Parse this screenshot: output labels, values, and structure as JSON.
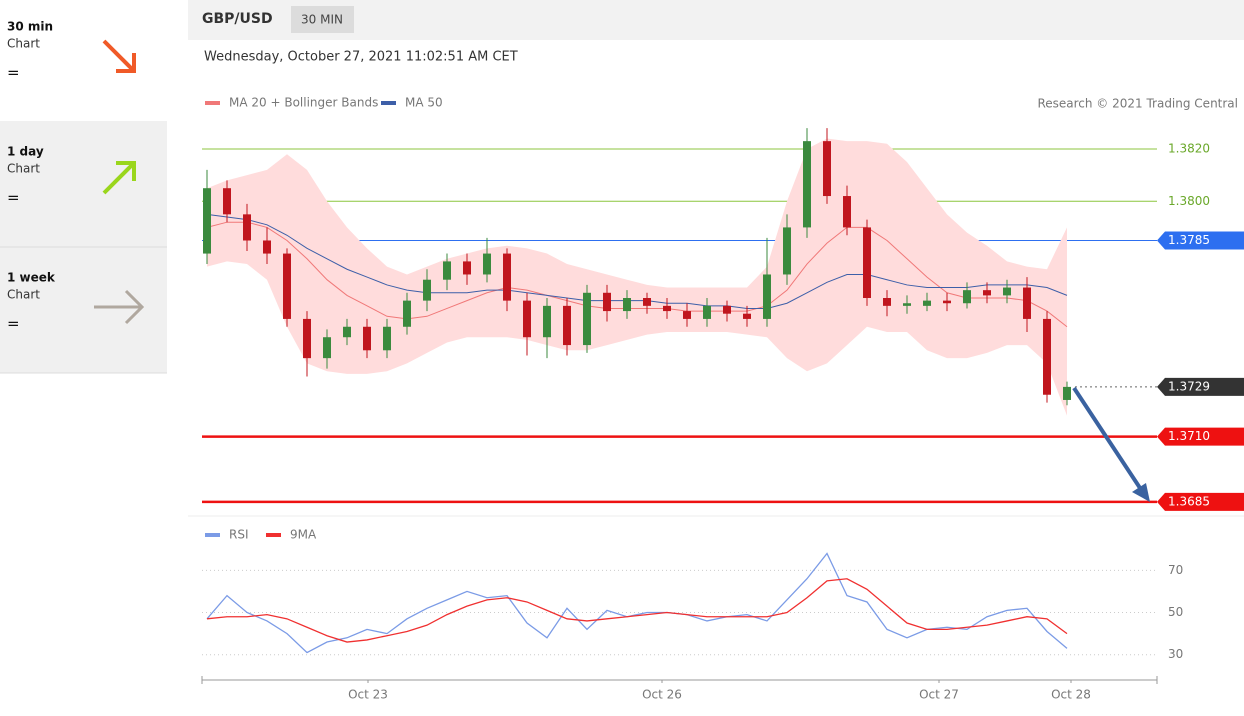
{
  "sidebar": [
    {
      "period": "30 min",
      "label": "Chart",
      "status": "="
    },
    {
      "period": "1 day",
      "label": "Chart",
      "status": "="
    },
    {
      "period": "1 week",
      "label": "Chart",
      "status": "="
    }
  ],
  "header": {
    "symbol": "GBP/USD",
    "interval": "30 MIN",
    "timestamp": "Wednesday, October 27, 2021 11:02:51 AM CET",
    "credit": "Research © 2021 Trading Central"
  },
  "chart_data": [
    {
      "type": "candlestick",
      "up_color": "#3b8a3e",
      "down_color": "#c0161e",
      "open": [
        1.378,
        1.3805,
        1.3795,
        1.3785,
        1.378,
        1.3755,
        1.374,
        1.3748,
        1.3752,
        1.3743,
        1.3752,
        1.3762,
        1.377,
        1.3777,
        1.3772,
        1.378,
        1.3762,
        1.3748,
        1.376,
        1.3745,
        1.3765,
        1.3758,
        1.3763,
        1.376,
        1.3758,
        1.3755,
        1.376,
        1.3757,
        1.3755,
        1.3772,
        1.379,
        1.3823,
        1.3802,
        1.379,
        1.3763,
        1.376,
        1.376,
        1.3762,
        1.3761,
        1.3766,
        1.3764,
        1.3767,
        1.3755,
        1.3724
      ],
      "high": [
        1.3812,
        1.3808,
        1.3799,
        1.379,
        1.3782,
        1.3758,
        1.3751,
        1.3755,
        1.3755,
        1.3755,
        1.3765,
        1.3774,
        1.378,
        1.378,
        1.3786,
        1.3782,
        1.3765,
        1.3763,
        1.3763,
        1.3768,
        1.3768,
        1.3766,
        1.3765,
        1.3763,
        1.3761,
        1.3763,
        1.3762,
        1.376,
        1.3786,
        1.3795,
        1.3828,
        1.3828,
        1.3806,
        1.3793,
        1.3766,
        1.3764,
        1.3765,
        1.3765,
        1.3769,
        1.3769,
        1.377,
        1.3771,
        1.3758,
        1.3731
      ],
      "low": [
        1.3776,
        1.3792,
        1.3781,
        1.3776,
        1.3752,
        1.3733,
        1.3736,
        1.3745,
        1.374,
        1.374,
        1.3749,
        1.3758,
        1.3766,
        1.3768,
        1.3769,
        1.3758,
        1.3741,
        1.374,
        1.3741,
        1.3742,
        1.3754,
        1.3755,
        1.3757,
        1.3755,
        1.3752,
        1.3752,
        1.3754,
        1.3752,
        1.3752,
        1.3768,
        1.3786,
        1.3799,
        1.3787,
        1.376,
        1.3756,
        1.3757,
        1.3758,
        1.3758,
        1.3759,
        1.3761,
        1.3761,
        1.375,
        1.3723,
        1.3722
      ],
      "close": [
        1.3805,
        1.3795,
        1.3785,
        1.378,
        1.3755,
        1.374,
        1.3748,
        1.3752,
        1.3743,
        1.3752,
        1.3762,
        1.377,
        1.3777,
        1.3772,
        1.378,
        1.3762,
        1.3748,
        1.376,
        1.3745,
        1.3765,
        1.3758,
        1.3763,
        1.376,
        1.3758,
        1.3755,
        1.376,
        1.3757,
        1.3755,
        1.3772,
        1.379,
        1.3823,
        1.3802,
        1.379,
        1.3763,
        1.376,
        1.3761,
        1.3762,
        1.3761,
        1.3766,
        1.3764,
        1.3767,
        1.3755,
        1.3726,
        1.3729
      ],
      "overlays": [
        {
          "name": "MA 20 + Bollinger Bands",
          "color": "#f07878",
          "band_color": "#ffdcdc",
          "values": [
            1.379,
            1.3792,
            1.3792,
            1.379,
            1.3785,
            1.3778,
            1.377,
            1.3764,
            1.376,
            1.3756,
            1.3755,
            1.3756,
            1.3759,
            1.3762,
            1.3765,
            1.3767,
            1.3766,
            1.3764,
            1.3762,
            1.376,
            1.3759,
            1.3759,
            1.3759,
            1.3759,
            1.3758,
            1.3758,
            1.3758,
            1.3758,
            1.376,
            1.3766,
            1.3776,
            1.3784,
            1.379,
            1.379,
            1.3785,
            1.3778,
            1.3771,
            1.3765,
            1.3763,
            1.3763,
            1.3763,
            1.3762,
            1.3758,
            1.3752
          ],
          "upper": [
            1.3805,
            1.3808,
            1.381,
            1.3812,
            1.3818,
            1.3812,
            1.38,
            1.379,
            1.3782,
            1.3775,
            1.3772,
            1.3775,
            1.3778,
            1.378,
            1.3782,
            1.3783,
            1.3782,
            1.378,
            1.3776,
            1.3774,
            1.3772,
            1.377,
            1.3768,
            1.3767,
            1.3767,
            1.3767,
            1.3767,
            1.3767,
            1.3775,
            1.38,
            1.382,
            1.3824,
            1.3823,
            1.3823,
            1.3822,
            1.3815,
            1.3805,
            1.3795,
            1.3788,
            1.3783,
            1.3777,
            1.3775,
            1.3774,
            1.379
          ],
          "lower": [
            1.3775,
            1.3777,
            1.3776,
            1.377,
            1.3752,
            1.3738,
            1.3735,
            1.3734,
            1.3734,
            1.3735,
            1.3738,
            1.3742,
            1.3746,
            1.3748,
            1.3748,
            1.3748,
            1.3747,
            1.3745,
            1.3743,
            1.3743,
            1.3745,
            1.3747,
            1.3749,
            1.375,
            1.375,
            1.375,
            1.375,
            1.3749,
            1.3748,
            1.374,
            1.3735,
            1.3738,
            1.3745,
            1.3752,
            1.375,
            1.375,
            1.3743,
            1.374,
            1.374,
            1.3742,
            1.3745,
            1.3745,
            1.3738,
            1.3718
          ]
        },
        {
          "name": "MA 50",
          "color": "#3d5fa8",
          "values": [
            1.3795,
            1.3794,
            1.3793,
            1.3791,
            1.3787,
            1.3782,
            1.3778,
            1.3774,
            1.3771,
            1.3768,
            1.3766,
            1.3765,
            1.3765,
            1.3765,
            1.3766,
            1.3766,
            1.3765,
            1.3764,
            1.3763,
            1.3762,
            1.3762,
            1.3762,
            1.3762,
            1.3761,
            1.3761,
            1.376,
            1.376,
            1.3759,
            1.3759,
            1.3761,
            1.3765,
            1.3769,
            1.3772,
            1.3772,
            1.377,
            1.3768,
            1.3767,
            1.3767,
            1.3767,
            1.3768,
            1.3768,
            1.3768,
            1.3767,
            1.3764
          ]
        }
      ],
      "levels": [
        {
          "value": 1.382,
          "label": "1.3820",
          "color": "#8cc63f",
          "line": "solid",
          "box": false
        },
        {
          "value": 1.38,
          "label": "1.3800",
          "color": "#8cc63f",
          "line": "solid",
          "box": false
        },
        {
          "value": 1.3785,
          "label": "1.3785",
          "color": "#2d6ff0",
          "line": "solid",
          "box": true
        },
        {
          "value": 1.3729,
          "label": "1.3729",
          "color": "#333333",
          "line": "dotted",
          "box": true
        },
        {
          "value": 1.371,
          "label": "1.3710",
          "color": "#ee1111",
          "line": "thick",
          "box": true
        },
        {
          "value": 1.3685,
          "label": "1.3685",
          "color": "#ee1111",
          "line": "thick",
          "box": true
        }
      ],
      "ylim": [
        1.368,
        1.3833
      ],
      "xlim": [
        -0.25,
        47.5
      ]
    },
    {
      "type": "line",
      "series": [
        {
          "name": "RSI",
          "color": "#7b9be6",
          "values": [
            47,
            58,
            50,
            46,
            40,
            31,
            36,
            38,
            42,
            40,
            47,
            52,
            56,
            60,
            57,
            58,
            45,
            38,
            52,
            42,
            51,
            48,
            50,
            50,
            49,
            46,
            48,
            49,
            46,
            56,
            66,
            78,
            58,
            55,
            42,
            38,
            42,
            43,
            42,
            48,
            51,
            52,
            41,
            33
          ]
        },
        {
          "name": "9MA",
          "color": "#f03030",
          "values": [
            47,
            48,
            48,
            49,
            47,
            43,
            39,
            36,
            37,
            39,
            41,
            44,
            49,
            53,
            56,
            57,
            55,
            51,
            47,
            46,
            47,
            48,
            49,
            50,
            49,
            48,
            48,
            48,
            48,
            50,
            57,
            65,
            66,
            61,
            53,
            45,
            42,
            42,
            43,
            44,
            46,
            48,
            47,
            40
          ]
        }
      ],
      "ylim": [
        18,
        82
      ],
      "yticks": [
        30,
        50,
        70
      ],
      "xlim": [
        -0.25,
        47.5
      ],
      "xticks": [
        {
          "value": 8.05,
          "label": "Oct 23"
        },
        {
          "value": 22.75,
          "label": "Oct 26"
        },
        {
          "value": 36.6,
          "label": "Oct 27"
        },
        {
          "value": 43.2,
          "label": "Oct 28"
        }
      ]
    }
  ]
}
